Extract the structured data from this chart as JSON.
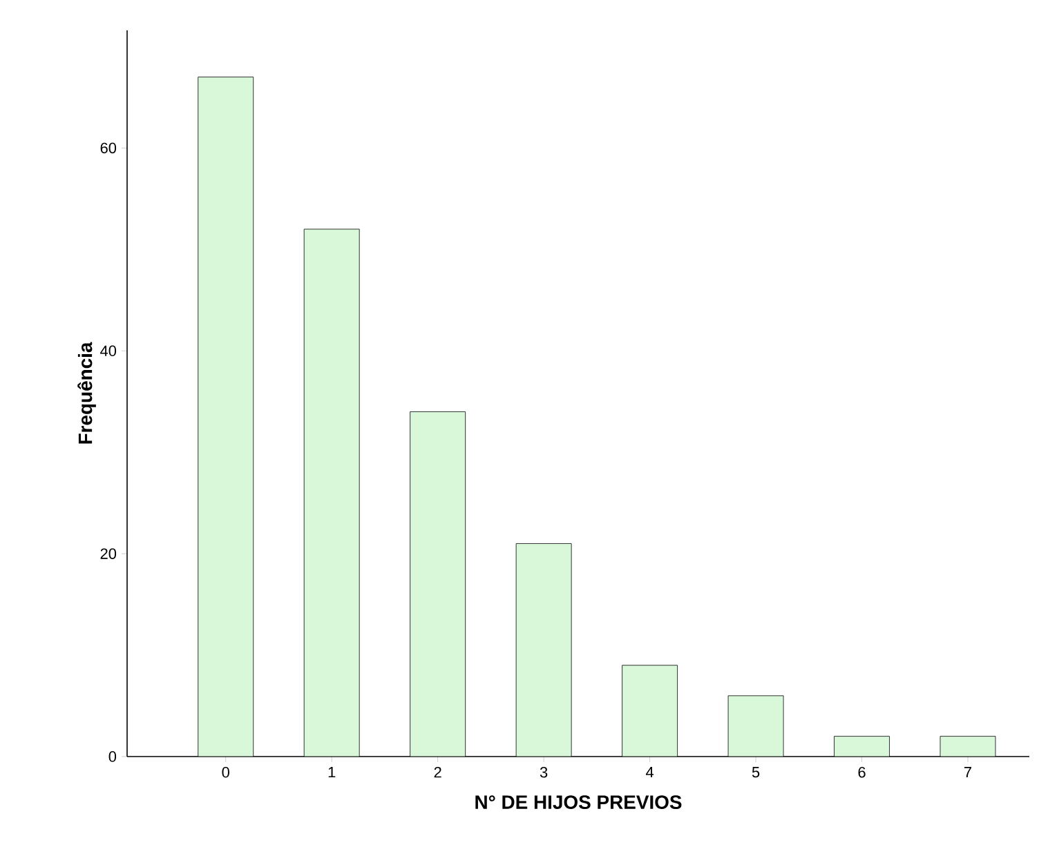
{
  "chart_data": {
    "type": "bar",
    "xlabel": "N° DE HIJOS PREVIOS",
    "ylabel": "Frequência",
    "categories": [
      "0",
      "1",
      "2",
      "3",
      "4",
      "5",
      "6",
      "7"
    ],
    "values": [
      67,
      52,
      34,
      21,
      9,
      6,
      2,
      2
    ],
    "color": "#d9f7d9",
    "ylim": [
      0,
      71.6
    ],
    "yticks": [
      0,
      20,
      40,
      60
    ]
  }
}
